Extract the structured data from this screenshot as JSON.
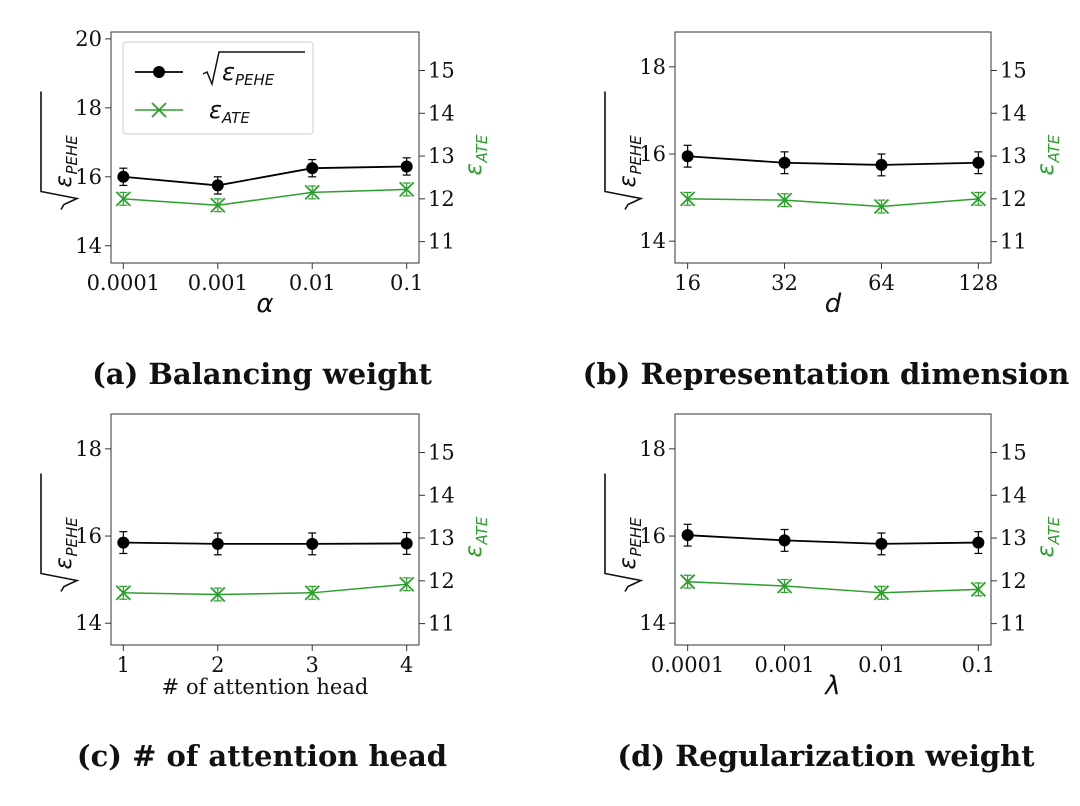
{
  "colors": {
    "pehe": "#000000",
    "ate": "#2ca02c"
  },
  "legend": {
    "pehe_label": "√ε",
    "pehe_sub": "PEHE",
    "ate_label": "ε",
    "ate_sub": "ATE"
  },
  "axis_labels": {
    "left_symbol": "ε",
    "left_sub": "PEHE",
    "right_symbol": "ε",
    "right_sub": "ATE"
  },
  "chart_data": [
    {
      "type": "line",
      "caption": "(a) Balancing weight",
      "xlabel": "α",
      "xlabel_style": "math",
      "categories": [
        "0.0001",
        "0.001",
        "0.01",
        "0.1"
      ],
      "ylim_left": [
        13.5,
        20.2
      ],
      "yticks_left": [
        "14",
        "16",
        "18",
        "20"
      ],
      "ylim_right": [
        10.5,
        15.9
      ],
      "yticks_right": [
        "11",
        "12",
        "13",
        "14",
        "15"
      ],
      "legend": true,
      "series": [
        {
          "name": "√ε_PEHE",
          "axis": "left",
          "values": [
            16.0,
            15.75,
            16.25,
            16.3
          ],
          "errors": [
            0.25,
            0.25,
            0.25,
            0.25
          ]
        },
        {
          "name": "ε_ATE",
          "axis": "right",
          "values": [
            12.0,
            11.85,
            12.15,
            12.22
          ],
          "errors": [
            0.15,
            0.15,
            0.15,
            0.15
          ]
        }
      ]
    },
    {
      "type": "line",
      "caption": "(b) Representation dimension",
      "xlabel": "d",
      "xlabel_style": "math",
      "categories": [
        "16",
        "32",
        "64",
        "128"
      ],
      "ylim_left": [
        13.5,
        18.8
      ],
      "yticks_left": [
        "14",
        "16",
        "18"
      ],
      "ylim_right": [
        10.5,
        15.9
      ],
      "yticks_right": [
        "11",
        "12",
        "13",
        "14",
        "15"
      ],
      "legend": false,
      "series": [
        {
          "name": "√ε_PEHE",
          "axis": "left",
          "values": [
            15.95,
            15.8,
            15.75,
            15.8
          ],
          "errors": [
            0.25,
            0.25,
            0.25,
            0.25
          ]
        },
        {
          "name": "ε_ATE",
          "axis": "right",
          "values": [
            12.0,
            11.97,
            11.82,
            12.0
          ],
          "errors": [
            0.15,
            0.15,
            0.15,
            0.15
          ]
        }
      ]
    },
    {
      "type": "line",
      "caption": "(c) # of attention head",
      "xlabel": "# of attention head",
      "xlabel_style": "text",
      "categories": [
        "1",
        "2",
        "3",
        "4"
      ],
      "ylim_left": [
        13.5,
        18.8
      ],
      "yticks_left": [
        "14",
        "16",
        "18"
      ],
      "ylim_right": [
        10.5,
        15.9
      ],
      "yticks_right": [
        "11",
        "12",
        "13",
        "14",
        "15"
      ],
      "legend": false,
      "series": [
        {
          "name": "√ε_PEHE",
          "axis": "left",
          "values": [
            15.85,
            15.82,
            15.82,
            15.83
          ],
          "errors": [
            0.25,
            0.25,
            0.25,
            0.25
          ]
        },
        {
          "name": "ε_ATE",
          "axis": "right",
          "values": [
            11.72,
            11.68,
            11.72,
            11.92
          ],
          "errors": [
            0.15,
            0.15,
            0.15,
            0.15
          ]
        }
      ]
    },
    {
      "type": "line",
      "caption": "(d) Regularization weight",
      "xlabel": "λ",
      "xlabel_style": "math",
      "categories": [
        "0.0001",
        "0.001",
        "0.01",
        "0.1"
      ],
      "ylim_left": [
        13.5,
        18.8
      ],
      "yticks_left": [
        "14",
        "16",
        "18"
      ],
      "ylim_right": [
        10.5,
        15.9
      ],
      "yticks_right": [
        "11",
        "12",
        "13",
        "14",
        "15"
      ],
      "legend": false,
      "series": [
        {
          "name": "√ε_PEHE",
          "axis": "left",
          "values": [
            16.02,
            15.9,
            15.82,
            15.85
          ],
          "errors": [
            0.25,
            0.25,
            0.25,
            0.25
          ]
        },
        {
          "name": "ε_ATE",
          "axis": "right",
          "values": [
            11.98,
            11.88,
            11.72,
            11.8
          ],
          "errors": [
            0.15,
            0.15,
            0.15,
            0.15
          ]
        }
      ]
    }
  ]
}
